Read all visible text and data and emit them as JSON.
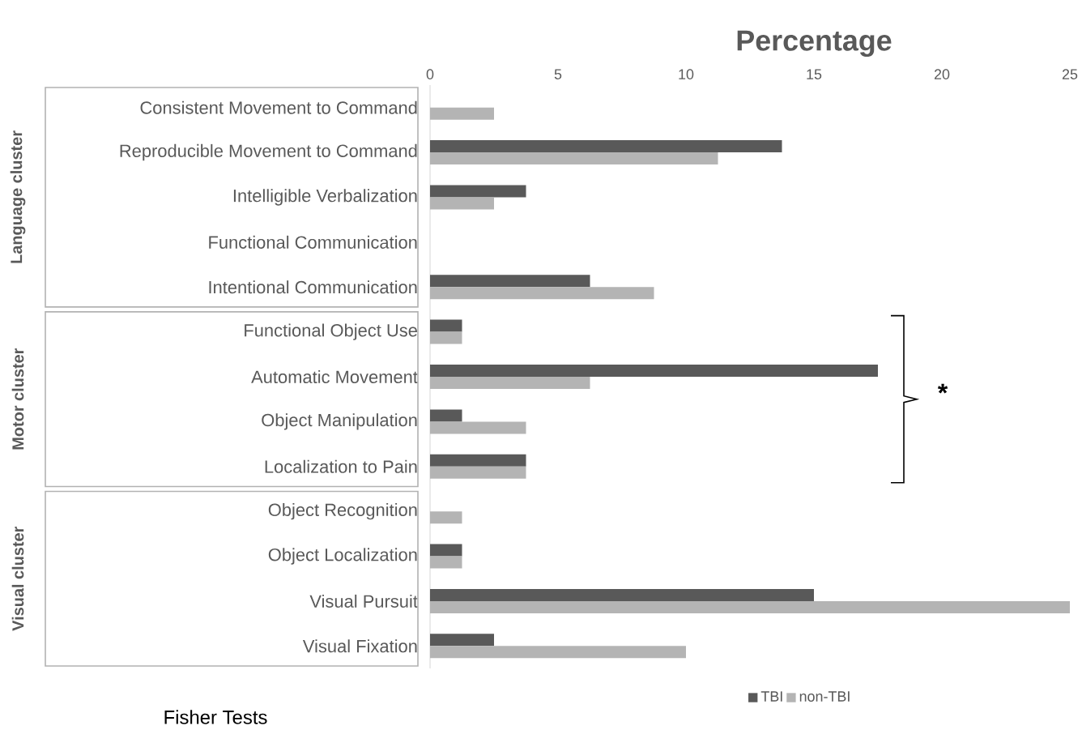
{
  "chart_data": {
    "type": "bar",
    "orientation": "horizontal",
    "xlabel": "Percentage",
    "categories": [
      "Consistent Movement to Command",
      "Reproducible Movement to Command",
      "Intelligible Verbalization",
      "Functional Communication",
      "Intentional Communication",
      "Functional Object Use",
      "Automatic Movement",
      "Object Manipulation",
      "Localization to Pain",
      "Object Recognition",
      "Object Localization",
      "Visual Pursuit",
      "Visual Fixation"
    ],
    "series": [
      {
        "name": "TBI",
        "color": "#595959",
        "values": [
          null,
          13.75,
          3.75,
          null,
          6.25,
          1.25,
          17.5,
          1.25,
          3.75,
          null,
          1.25,
          15,
          2.5
        ]
      },
      {
        "name": "non-TBI",
        "color": "#b4b4b4",
        "values": [
          2.5,
          11.25,
          2.5,
          null,
          8.75,
          1.25,
          6.25,
          3.75,
          3.75,
          1.25,
          1.25,
          25,
          10
        ]
      }
    ],
    "xlim": [
      0,
      25
    ],
    "xticks": [
      0,
      5,
      10,
      15,
      20,
      25
    ],
    "grid": false,
    "legend": "bottom",
    "annotations": [
      "Language cluster",
      "Motor cluster",
      "Visual cluster",
      "*",
      "Fisher Tests"
    ]
  }
}
